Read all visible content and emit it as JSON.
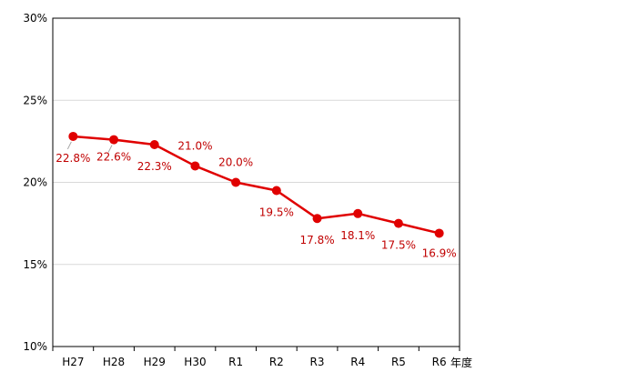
{
  "chart_data": {
    "type": "line",
    "categories": [
      "H27",
      "H28",
      "H29",
      "H30",
      "R1",
      "R2",
      "R3",
      "R4",
      "R5",
      "R6"
    ],
    "series": [
      {
        "values": [
          22.8,
          22.6,
          22.3,
          21.0,
          20.0,
          19.5,
          17.8,
          18.1,
          17.5,
          16.9
        ],
        "labels": [
          "22.8%",
          "22.6%",
          "22.3%",
          "21.0%",
          "20.0%",
          "19.5%",
          "17.8%",
          "18.1%",
          "17.5%",
          "16.9%"
        ],
        "color": "#e00000"
      }
    ],
    "xlabel": "年度",
    "ylabel": "",
    "ylim": [
      10,
      30
    ],
    "yticks": [
      10,
      15,
      20,
      25,
      30
    ],
    "ytick_labels": [
      "10%",
      "15%",
      "20%",
      "25%",
      "30%"
    ],
    "grid": true,
    "label_color": "#c00000",
    "grid_color": "#d9d9d9"
  }
}
